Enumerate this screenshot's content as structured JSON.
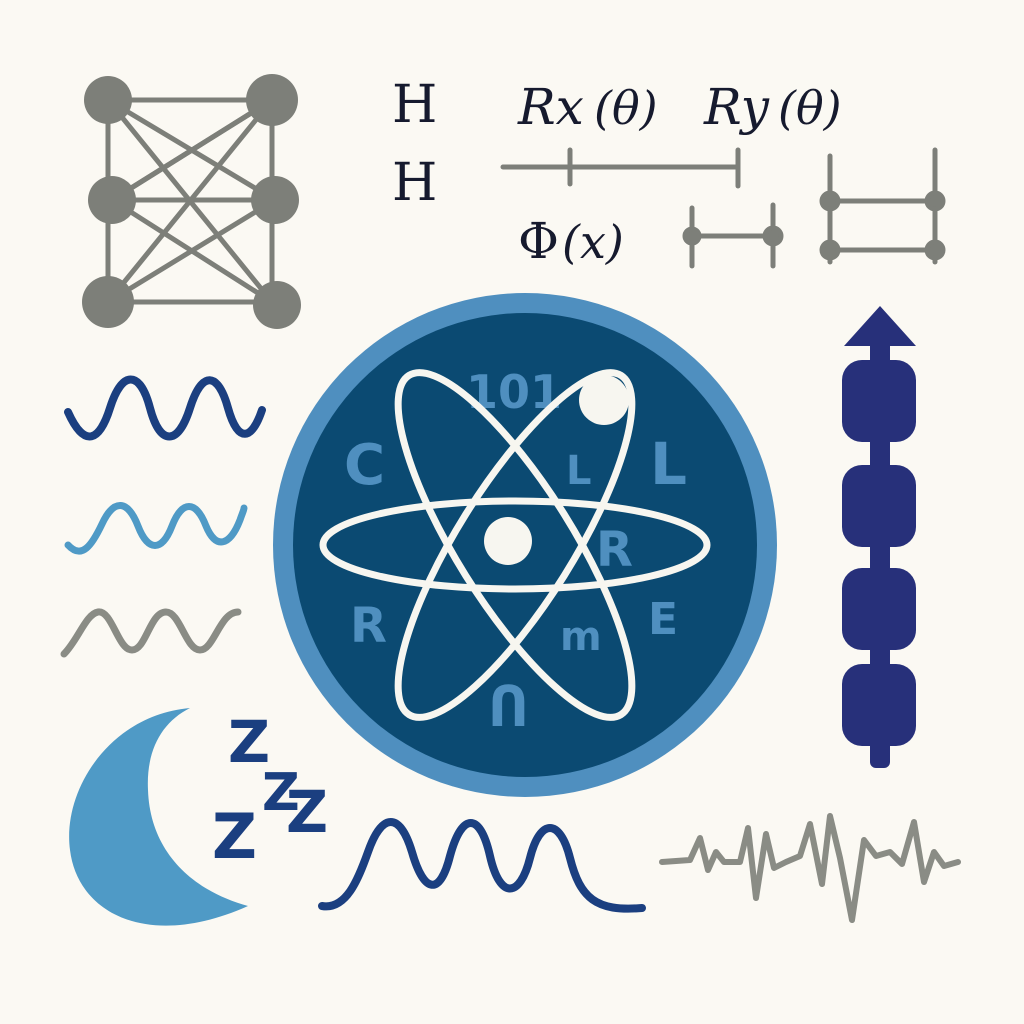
{
  "labels": {
    "h_top": "H",
    "h_bottom": "H",
    "rx": "Rx",
    "rx_arg": "(θ)",
    "ry": "Ry",
    "ry_arg": "(θ)",
    "phi": "Φ",
    "phi_arg": "(x)"
  },
  "emblem_glyphs": {
    "top": "101",
    "left": "C",
    "inner_top": "L",
    "right": "L",
    "inner_right": "R",
    "lower_left": "R",
    "lower_right": "E",
    "lower_inner": "m",
    "bottom": "Ո"
  },
  "sleep": {
    "z1": "Z",
    "z2": "Z",
    "z3": "Z",
    "z4": "Z"
  },
  "colors": {
    "background": "#fbf9f3",
    "navy_ink": "#161a2e",
    "gray": "#7d7f79",
    "emblem_ring": "#4f8fbf",
    "emblem_core": "#0b4a72",
    "deep_blue": "#1b3f80",
    "light_blue": "#4f9ac6",
    "indigo": "#27307a",
    "white": "#f7f6f0"
  }
}
